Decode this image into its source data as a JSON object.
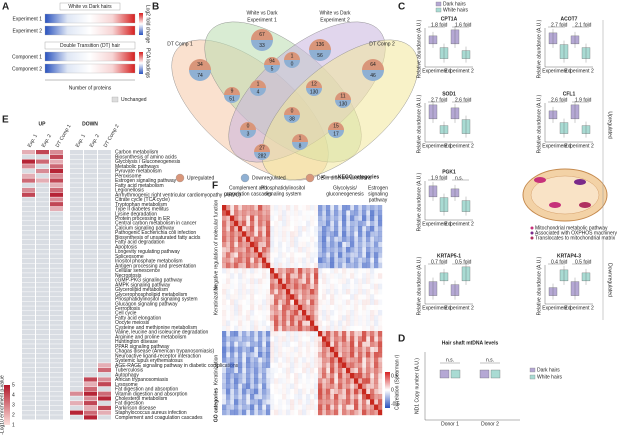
{
  "panels": {
    "a": {
      "label": "A",
      "legend_title": "White vs Dark hairs",
      "rows": [
        "Experiment 1",
        "Experiment 2"
      ],
      "subtitle": "Double Transition (DT) hair",
      "rows2": [
        "Component 1",
        "Component 2"
      ],
      "x_axis": "Number of proteins",
      "colorbar1": "Log2 fold change",
      "colorbar2": "PCA loadings",
      "unchanged": "Unchanged"
    },
    "b": {
      "label": "B",
      "sets": [
        [
          "DT Comp 1"
        ],
        [
          "White vs Dark",
          "Experiment 1"
        ],
        [
          "White vs Dark",
          "Experiment 2"
        ],
        [
          "DT Comp 2"
        ]
      ],
      "regions": [
        {
          "up": 34,
          "down": 74
        },
        {
          "up": 67,
          "down": 33
        },
        {
          "up": 136,
          "down": 56
        },
        {
          "up": 64,
          "down": 46
        },
        {
          "up": 1,
          "down": 0
        },
        {
          "up": 94,
          "down": 5
        },
        {
          "up": 12,
          "down": 130
        },
        {
          "up": 9,
          "down": 51
        },
        {
          "up": 1,
          "down": 4
        },
        {
          "up": 0,
          "down": 38
        },
        {
          "up": 11,
          "down": 130
        },
        {
          "up": 0,
          "down": 3
        },
        {
          "up": 1,
          "down": 8
        },
        {
          "up": 27,
          "down": 282
        },
        {
          "up": 15,
          "down": 17
        }
      ],
      "legend": [
        "Upregulated",
        "Downregulated",
        "DE in different directions"
      ]
    },
    "c": {
      "label": "C",
      "legend": [
        "Dark hairs",
        "White hairs"
      ],
      "y_axis": "Relative abundance (A.U.)",
      "x_labels": [
        "Experiment 1",
        "Experiment 2"
      ],
      "groups": [
        "Upregulated",
        "Downregulated"
      ],
      "plots": [
        {
          "name": "CPT1A",
          "folds": [
            "1.8 fold",
            "1.6 fold"
          ]
        },
        {
          "name": "ACOT7",
          "folds": [
            "2.7 fold",
            "2.1 fold"
          ]
        },
        {
          "name": "SOD1",
          "folds": [
            "2.7 fold",
            "2.6 fold"
          ]
        },
        {
          "name": "CFL1",
          "folds": [
            "2.6 fold",
            "1.9 fold"
          ]
        },
        {
          "name": "PGK1",
          "folds": [
            "1.9 fold",
            "n.s."
          ]
        },
        {
          "name": "KRTAP5-1",
          "folds": [
            "0.7 fold",
            "0.5 fold"
          ]
        },
        {
          "name": "KRTAP4-3",
          "folds": [
            "0.4 fold",
            "0.5 fold"
          ]
        }
      ],
      "diagram": [
        "Mitochondrial metabolic pathway",
        "Associated with OXPHOS machinery",
        "Translocates to mitochondrial matrix"
      ]
    },
    "d": {
      "label": "D",
      "title": "Hair shaft mtDNA levels",
      "y_axis": "ND1 Copy number (A.U.)",
      "donors": [
        "Donor 1",
        "Donor 2"
      ],
      "ns": "n.s.",
      "legend": [
        "Dark hairs",
        "White hairs"
      ]
    },
    "e": {
      "label": "E",
      "headers": [
        "UP",
        "DOWN"
      ],
      "columns": [
        "Exp. 1",
        "Exp. 2",
        "DT Comp 1",
        "Exp. 1",
        "Exp. 2",
        "DT Comp 2"
      ],
      "pathways": [
        "Carbon metabolism",
        "Biosynthesis of amino acids",
        "Glycolysis / Gluconeogenesis",
        "Metabolic pathways",
        "Pyruvate metabolism",
        "Peroxisome",
        "Estrogen signaling pathway",
        "Fatty acid metabolism",
        "Legionellosis",
        "Arrhythmogenic right ventricular cardiomyopathy (ARVC)",
        "Citrate cycle (TCA cycle)",
        "Tryptophan metabolism",
        "Type II diabetes mellitus",
        "Lysine degradation",
        "Protein processing in ER",
        "Central carbon metabolism in cancer",
        "Calcium signaling pathway",
        "Pathogenic Escherichia coli infection",
        "Biosynthesis of unsaturated fatty acids",
        "Fatty acid degradation",
        "Apoptosis",
        "Longevity regulating pathway",
        "Spliceosome",
        "Inositol phosphate metabolism",
        "Antigen processing and presentation",
        "Cellular senescence",
        "Necroptosis",
        "cGMP-PKG signaling pathway",
        "AMPK signaling pathway",
        "Glycerolipid metabolism",
        "Glycerophospholipid metabolism",
        "Phosphatidylinositol signaling system",
        "Glucagon signaling pathway",
        "Ferroptosis",
        "Cell cycle",
        "Fatty acid elongation",
        "Oocyte meiosis",
        "Cysteine and methionine metabolism",
        "Valine, leucine and isoleucine degradation",
        "Arginine and proline metabolism",
        "Huntington disease",
        "PPAR signaling pathway",
        "Chagas disease (American trypanosomiasis)",
        "Neuroactive ligand-receptor interaction",
        "Systemic lupus erythematosus",
        "AGE-RAGE signaling pathway in diabetic complications",
        "Tuberculosis",
        "Autophagy",
        "African trypanosomiasis",
        "Lysosome",
        "Fat digestion and absorption",
        "Vitamin digestion and absorption",
        "Cholesterol metabolism",
        "Fat digestion",
        "Parkinson disease",
        "Staphylococcus aureus infection",
        "Complement and coagulation cascades"
      ],
      "legend_title": "-Log10 enrichment p-value",
      "legend_ticks": [
        1,
        2,
        3,
        4,
        5
      ]
    },
    "f": {
      "label": "F",
      "kegg": "KEGG categories",
      "kegg_labels": [
        [
          "Complement and",
          "coagulation cascades"
        ],
        [
          "Phosphatidylinositol",
          "signaling system"
        ],
        [
          "Glycolysis/",
          "gluconeogenesis"
        ],
        [
          "Estrogen",
          "signaling",
          "pathway"
        ]
      ],
      "go": "GO categories",
      "go_labels": [
        "Negative regulation of molecular function",
        "Keratinization",
        "Keratinization"
      ],
      "colorbar_title": "Correlation (Spearman r)",
      "colorbar_ticks": [
        0.5,
        0,
        -0.5
      ]
    }
  }
}
